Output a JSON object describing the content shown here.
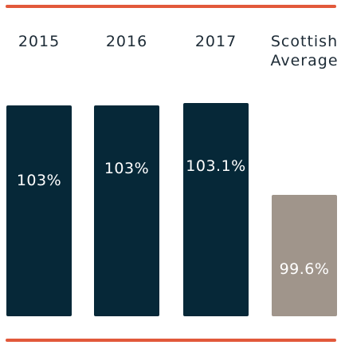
{
  "colors": {
    "rule": "#e2593b",
    "bar_primary": "#062838",
    "bar_average": "#a0958b",
    "label_text": "#1d2b36",
    "value_text": "#ffffff"
  },
  "chart_data": {
    "type": "bar",
    "categories": [
      "2015",
      "2016",
      "2017",
      "Scottish Average"
    ],
    "values": [
      103,
      103,
      103.1,
      99.6
    ],
    "data_labels": [
      "103%",
      "103%",
      "103.1%",
      "99.6%"
    ],
    "title": "",
    "xlabel": "",
    "ylabel": "",
    "ylim": [
      95,
      104
    ],
    "grid": false,
    "legend": "none"
  }
}
